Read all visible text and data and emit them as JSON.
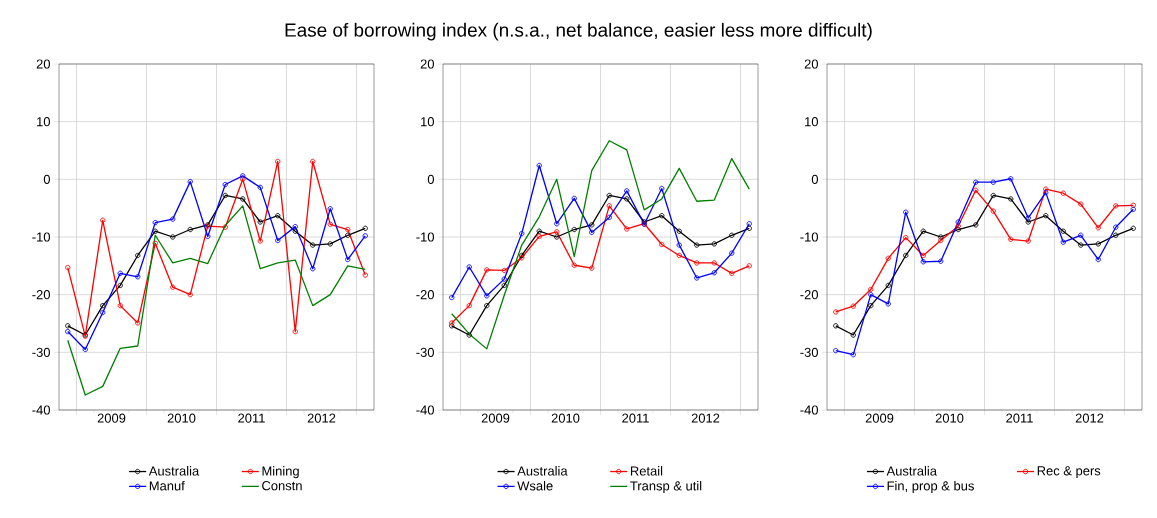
{
  "chart_data": [
    {
      "type": "line",
      "title": "Ease of borrowing index (n.s.a., net balance, easier less more difficult)",
      "x": [
        2008.875,
        2009.125,
        2009.375,
        2009.625,
        2009.875,
        2010.125,
        2010.375,
        2010.625,
        2010.875,
        2011.125,
        2011.375,
        2011.625,
        2011.875,
        2012.125,
        2012.375,
        2012.625,
        2012.875,
        2013.125
      ],
      "xlim": [
        2008.75,
        2013.25
      ],
      "xticks": [
        {
          "value": 2009,
          "label": null
        },
        {
          "value": 2009.5,
          "label": "2009"
        },
        {
          "value": 2010,
          "label": null
        },
        {
          "value": 2010.5,
          "label": "2010"
        },
        {
          "value": 2011,
          "label": null
        },
        {
          "value": 2011.5,
          "label": "2011"
        },
        {
          "value": 2012,
          "label": null
        },
        {
          "value": 2012.5,
          "label": "2012"
        },
        {
          "value": 2013,
          "label": null
        }
      ],
      "ylim": [
        -40,
        20
      ],
      "yticks": [
        -40,
        -30,
        -20,
        -10,
        0,
        10,
        20
      ],
      "grid": true,
      "legend": "bottom",
      "series": [
        {
          "name": "Australia",
          "color": "#000000",
          "marker": "circle",
          "values": [
            -25.4,
            -27.0,
            -21.9,
            -18.4,
            -13.2,
            -9.0,
            -10.0,
            -8.7,
            -7.9,
            -2.8,
            -3.4,
            -7.4,
            -6.3,
            -9.0,
            -11.4,
            -11.2,
            -9.7,
            -8.5
          ]
        },
        {
          "name": "Mining",
          "color": "#ff0000",
          "marker": "circle",
          "values": [
            -15.3,
            -27.2,
            -7.1,
            -21.9,
            -24.9,
            -11.1,
            -18.7,
            -20.0,
            -8.1,
            -8.3,
            0.0,
            -10.7,
            3.1,
            -26.4,
            3.1,
            -7.8,
            -8.7,
            -16.6
          ]
        },
        {
          "name": "Manuf",
          "color": "#0000ff",
          "marker": "circle",
          "values": [
            -26.4,
            -29.5,
            -23.1,
            -16.3,
            -16.9,
            -7.5,
            -6.9,
            -0.4,
            -9.9,
            -0.9,
            0.6,
            -1.4,
            -10.6,
            -8.2,
            -15.5,
            -5.1,
            -13.9,
            -9.8
          ]
        },
        {
          "name": "Constn",
          "color": "#008000",
          "marker": "none",
          "values": [
            -27.9,
            -37.4,
            -35.9,
            -29.3,
            -28.9,
            -9.7,
            -14.5,
            -13.7,
            -14.6,
            -8.0,
            -4.6,
            -15.5,
            -14.5,
            -14.0,
            -21.9,
            -20.0,
            -15.0,
            -15.6
          ]
        }
      ]
    },
    {
      "type": "line",
      "x": [
        2008.875,
        2009.125,
        2009.375,
        2009.625,
        2009.875,
        2010.125,
        2010.375,
        2010.625,
        2010.875,
        2011.125,
        2011.375,
        2011.625,
        2011.875,
        2012.125,
        2012.375,
        2012.625,
        2012.875,
        2013.125
      ],
      "xlim": [
        2008.75,
        2013.25
      ],
      "xticks": [
        {
          "value": 2009,
          "label": null
        },
        {
          "value": 2009.5,
          "label": "2009"
        },
        {
          "value": 2010,
          "label": null
        },
        {
          "value": 2010.5,
          "label": "2010"
        },
        {
          "value": 2011,
          "label": null
        },
        {
          "value": 2011.5,
          "label": "2011"
        },
        {
          "value": 2012,
          "label": null
        },
        {
          "value": 2012.5,
          "label": "2012"
        },
        {
          "value": 2013,
          "label": null
        }
      ],
      "ylim": [
        -40,
        20
      ],
      "yticks": [
        -40,
        -30,
        -20,
        -10,
        0,
        10,
        20
      ],
      "grid": true,
      "legend": "bottom",
      "series": [
        {
          "name": "Australia",
          "color": "#000000",
          "marker": "circle",
          "values": [
            -25.4,
            -27.0,
            -21.9,
            -18.4,
            -13.2,
            -9.0,
            -10.0,
            -8.7,
            -7.9,
            -2.8,
            -3.4,
            -7.4,
            -6.3,
            -9.0,
            -11.4,
            -11.2,
            -9.7,
            -8.5
          ]
        },
        {
          "name": "Retail",
          "color": "#ff0000",
          "marker": "circle",
          "values": [
            -24.9,
            -21.9,
            -15.7,
            -15.8,
            -13.6,
            -9.9,
            -9.1,
            -14.9,
            -15.4,
            -4.6,
            -8.6,
            -7.7,
            -11.3,
            -13.2,
            -14.5,
            -14.5,
            -16.3,
            -15.0
          ]
        },
        {
          "name": "Wsale",
          "color": "#0000ff",
          "marker": "circle",
          "values": [
            -20.5,
            -15.2,
            -20.2,
            -17.3,
            -9.4,
            2.4,
            -7.7,
            -3.3,
            -9.2,
            -6.6,
            -2.0,
            -7.8,
            -1.6,
            -11.4,
            -17.1,
            -16.2,
            -12.8,
            -7.7
          ]
        },
        {
          "name": "Transp & util",
          "color": "#008000",
          "marker": "none",
          "values": [
            -23.3,
            -26.8,
            -29.4,
            -20.1,
            -11.4,
            -6.5,
            0.0,
            -13.4,
            1.5,
            6.7,
            5.1,
            -5.3,
            -3.4,
            1.9,
            -3.8,
            -3.6,
            3.6,
            -1.7
          ]
        }
      ]
    },
    {
      "type": "line",
      "x": [
        2008.875,
        2009.125,
        2009.375,
        2009.625,
        2009.875,
        2010.125,
        2010.375,
        2010.625,
        2010.875,
        2011.125,
        2011.375,
        2011.625,
        2011.875,
        2012.125,
        2012.375,
        2012.625,
        2012.875,
        2013.125
      ],
      "xlim": [
        2008.75,
        2013.25
      ],
      "xticks": [
        {
          "value": 2009,
          "label": null
        },
        {
          "value": 2009.5,
          "label": "2009"
        },
        {
          "value": 2010,
          "label": null
        },
        {
          "value": 2010.5,
          "label": "2010"
        },
        {
          "value": 2011,
          "label": null
        },
        {
          "value": 2011.5,
          "label": "2011"
        },
        {
          "value": 2012,
          "label": null
        },
        {
          "value": 2012.5,
          "label": "2012"
        },
        {
          "value": 2013,
          "label": null
        }
      ],
      "ylim": [
        -40,
        20
      ],
      "yticks": [
        -40,
        -30,
        -20,
        -10,
        0,
        10,
        20
      ],
      "grid": true,
      "legend": "bottom",
      "series": [
        {
          "name": "Australia",
          "color": "#000000",
          "marker": "circle",
          "values": [
            -25.4,
            -27.0,
            -21.9,
            -18.4,
            -13.2,
            -9.0,
            -10.0,
            -8.7,
            -7.9,
            -2.8,
            -3.4,
            -7.4,
            -6.3,
            -9.0,
            -11.4,
            -11.2,
            -9.7,
            -8.5
          ]
        },
        {
          "name": "Rec & pers",
          "color": "#ff0000",
          "marker": "circle",
          "values": [
            -23.0,
            -22.0,
            -19.1,
            -13.7,
            -10.1,
            -13.2,
            -10.6,
            -8.1,
            -1.9,
            -5.5,
            -10.4,
            -10.7,
            -1.7,
            -2.4,
            -4.3,
            -8.4,
            -4.6,
            -4.5
          ]
        },
        {
          "name": "Fin, prop & bus",
          "color": "#0000ff",
          "marker": "circle",
          "values": [
            -29.7,
            -30.4,
            -20.0,
            -21.6,
            -5.7,
            -14.3,
            -14.2,
            -7.4,
            -0.5,
            -0.5,
            0.1,
            -6.7,
            -2.3,
            -10.9,
            -9.7,
            -13.9,
            -8.3,
            -5.2
          ]
        }
      ]
    }
  ]
}
